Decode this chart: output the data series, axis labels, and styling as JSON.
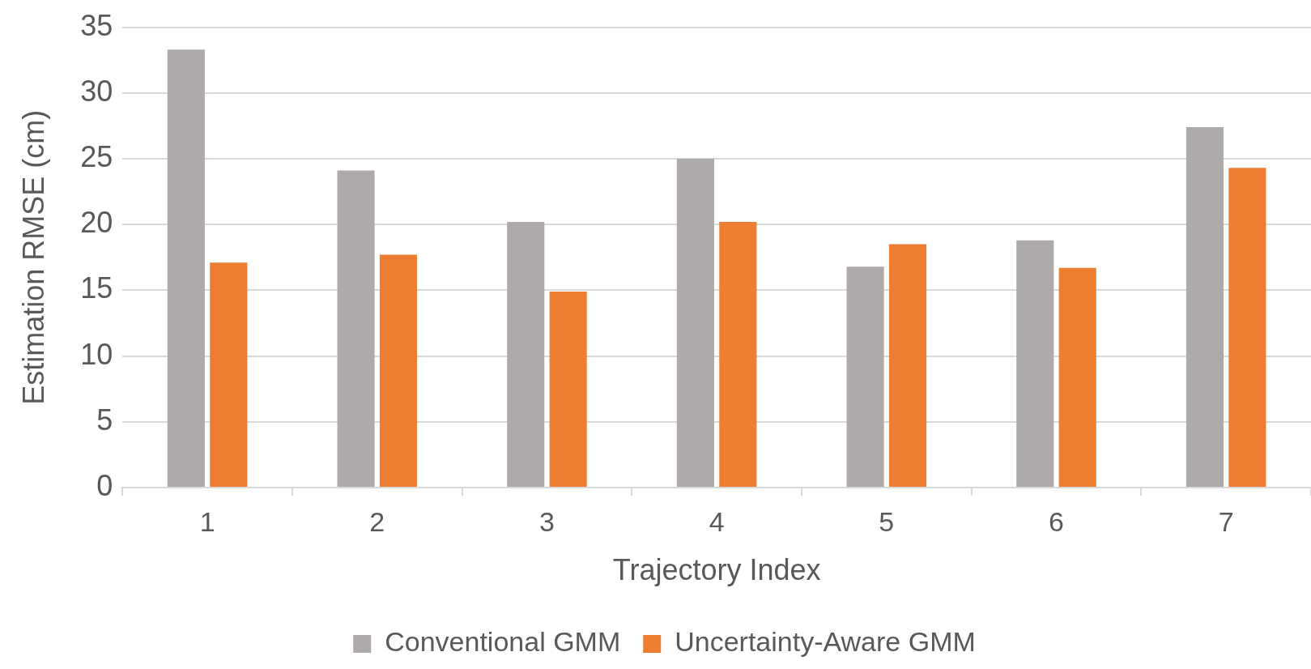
{
  "chart_data": {
    "type": "bar",
    "xlabel": "Trajectory Index",
    "ylabel": "Estimation RMSE (cm)",
    "categories": [
      "1",
      "2",
      "3",
      "4",
      "5",
      "6",
      "7"
    ],
    "series": [
      {
        "name": "Conventional GMM",
        "color": "#aeaaa9",
        "values": [
          33.3,
          24.1,
          20.2,
          25.0,
          16.8,
          18.8,
          27.4
        ]
      },
      {
        "name": "Uncertainty-Aware GMM",
        "color": "#ed7d31",
        "values": [
          17.1,
          17.7,
          14.9,
          20.2,
          18.5,
          16.7,
          24.3
        ]
      }
    ],
    "ylim": [
      0,
      35
    ],
    "yticks": [
      0,
      5,
      10,
      15,
      20,
      25,
      30,
      35
    ],
    "grid": "y",
    "legend": "bottom"
  }
}
